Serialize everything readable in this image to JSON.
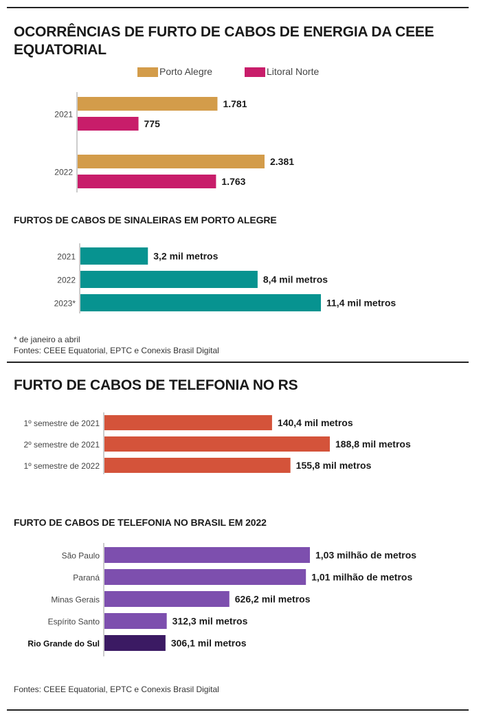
{
  "section1": {
    "title": "OCORRÊNCIAS DE FURTO DE CABOS DE ENERGIA DA CEEE EQUATORIAL",
    "legend": [
      {
        "label": "Porto Alegre",
        "color": "#D39C4A"
      },
      {
        "label": "Litoral Norte",
        "color": "#C81D6A"
      }
    ]
  },
  "section2": {
    "title": "FURTOS DE CABOS DE SINALEIRAS EM PORTO ALEGRE"
  },
  "notes1": {
    "footnote": "* de janeiro a abril",
    "sources": "Fontes: CEEE Equatorial, EPTC e Conexis Brasil Digital"
  },
  "section3": {
    "title": "FURTO DE CABOS DE TELEFONIA NO RS"
  },
  "section4": {
    "title": "FURTO DE CABOS DE TELEFONIA NO BRASIL EM 2022"
  },
  "notes2": {
    "sources": "Fontes: CEEE Equatorial, EPTC e Conexis Brasil Digital"
  },
  "chart_data": [
    {
      "type": "bar",
      "orientation": "horizontal",
      "categories": [
        "2021",
        "2022"
      ],
      "series": [
        {
          "name": "Porto Alegre",
          "color": "#D39C4A",
          "values": [
            1781,
            2381
          ],
          "labels": [
            "1.781",
            "2.381"
          ]
        },
        {
          "name": "Litoral Norte",
          "color": "#C81D6A",
          "values": [
            775,
            1763
          ],
          "labels": [
            "775",
            "1.763"
          ]
        }
      ]
    },
    {
      "type": "bar",
      "orientation": "horizontal",
      "categories": [
        "2021",
        "2022",
        "2023*"
      ],
      "series": [
        {
          "color": "#079390",
          "values": [
            3.2,
            8.4,
            11.4
          ],
          "labels": [
            "3,2 mil metros",
            "8,4 mil metros",
            "11,4 mil metros"
          ]
        }
      ]
    },
    {
      "type": "bar",
      "orientation": "horizontal",
      "categories": [
        "1º semestre de 2021",
        "2º semestre de 2021",
        "1º semestre de 2022"
      ],
      "series": [
        {
          "color": "#D4533A",
          "values": [
            140.4,
            188.8,
            155.8
          ],
          "labels": [
            "140,4 mil metros",
            "188,8 mil metros",
            "155,8 mil metros"
          ]
        }
      ]
    },
    {
      "type": "bar",
      "orientation": "horizontal",
      "categories": [
        "São Paulo",
        "Paraná",
        "Minas Gerais",
        "Espírito Santo",
        "Rio Grande do Sul"
      ],
      "highlight": "Rio Grande do Sul",
      "highlight_color": "#3B1A63",
      "series": [
        {
          "color": "#7D4FAE",
          "values": [
            1030,
            1010,
            626.2,
            312.3,
            306.1
          ],
          "labels": [
            "1,03 milhão de metros",
            "1,01 milhão de metros",
            "626,2 mil metros",
            "312,3 mil metros",
            "306,1 mil metros"
          ]
        }
      ]
    }
  ]
}
